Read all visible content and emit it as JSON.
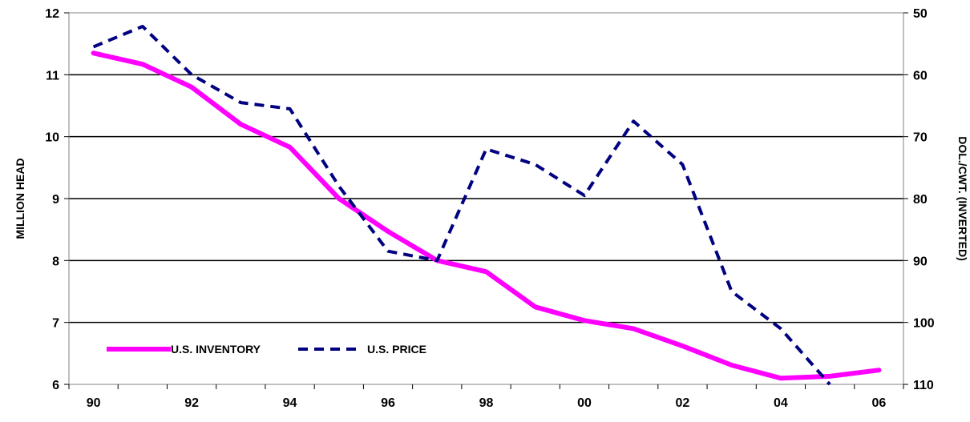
{
  "chart_data": {
    "type": "line",
    "title": "",
    "x_tick_labels": [
      "90",
      "92",
      "94",
      "96",
      "98",
      "00",
      "02",
      "04",
      "06"
    ],
    "x": [
      "1990",
      "1991",
      "1992",
      "1993",
      "1994",
      "1995",
      "1996",
      "1997",
      "1998",
      "1999",
      "2000",
      "2001",
      "2002",
      "2003",
      "2004",
      "2005",
      "2006"
    ],
    "left_axis": {
      "label": "MILLION HEAD",
      "ylim": [
        6,
        12
      ],
      "ticks": [
        "6",
        "7",
        "8",
        "9",
        "10",
        "11",
        "12"
      ]
    },
    "right_axis": {
      "label": "DOL./CWT. (INVERTED)",
      "ylim": [
        110,
        50
      ],
      "inverted": true,
      "ticks": [
        "50",
        "60",
        "70",
        "80",
        "90",
        "100",
        "110"
      ]
    },
    "grid": true,
    "legend_position": "lower-left",
    "series": [
      {
        "name": "U.S. INVENTORY",
        "axis": "left",
        "color": "#ff00ff",
        "style": "solid",
        "values": [
          11.35,
          11.17,
          10.8,
          10.2,
          9.83,
          9.0,
          8.47,
          8.0,
          7.82,
          7.25,
          7.03,
          6.9,
          6.62,
          6.31,
          6.1,
          6.13,
          6.23
        ]
      },
      {
        "name": "U.S. PRICE",
        "axis": "right",
        "color": "#000080",
        "style": "dashed",
        "values": [
          55.5,
          52.2,
          60.0,
          64.5,
          65.5,
          78.0,
          88.5,
          90.0,
          72.0,
          74.5,
          79.5,
          67.5,
          74.5,
          95.0,
          101.0,
          110.0,
          null
        ]
      }
    ]
  }
}
